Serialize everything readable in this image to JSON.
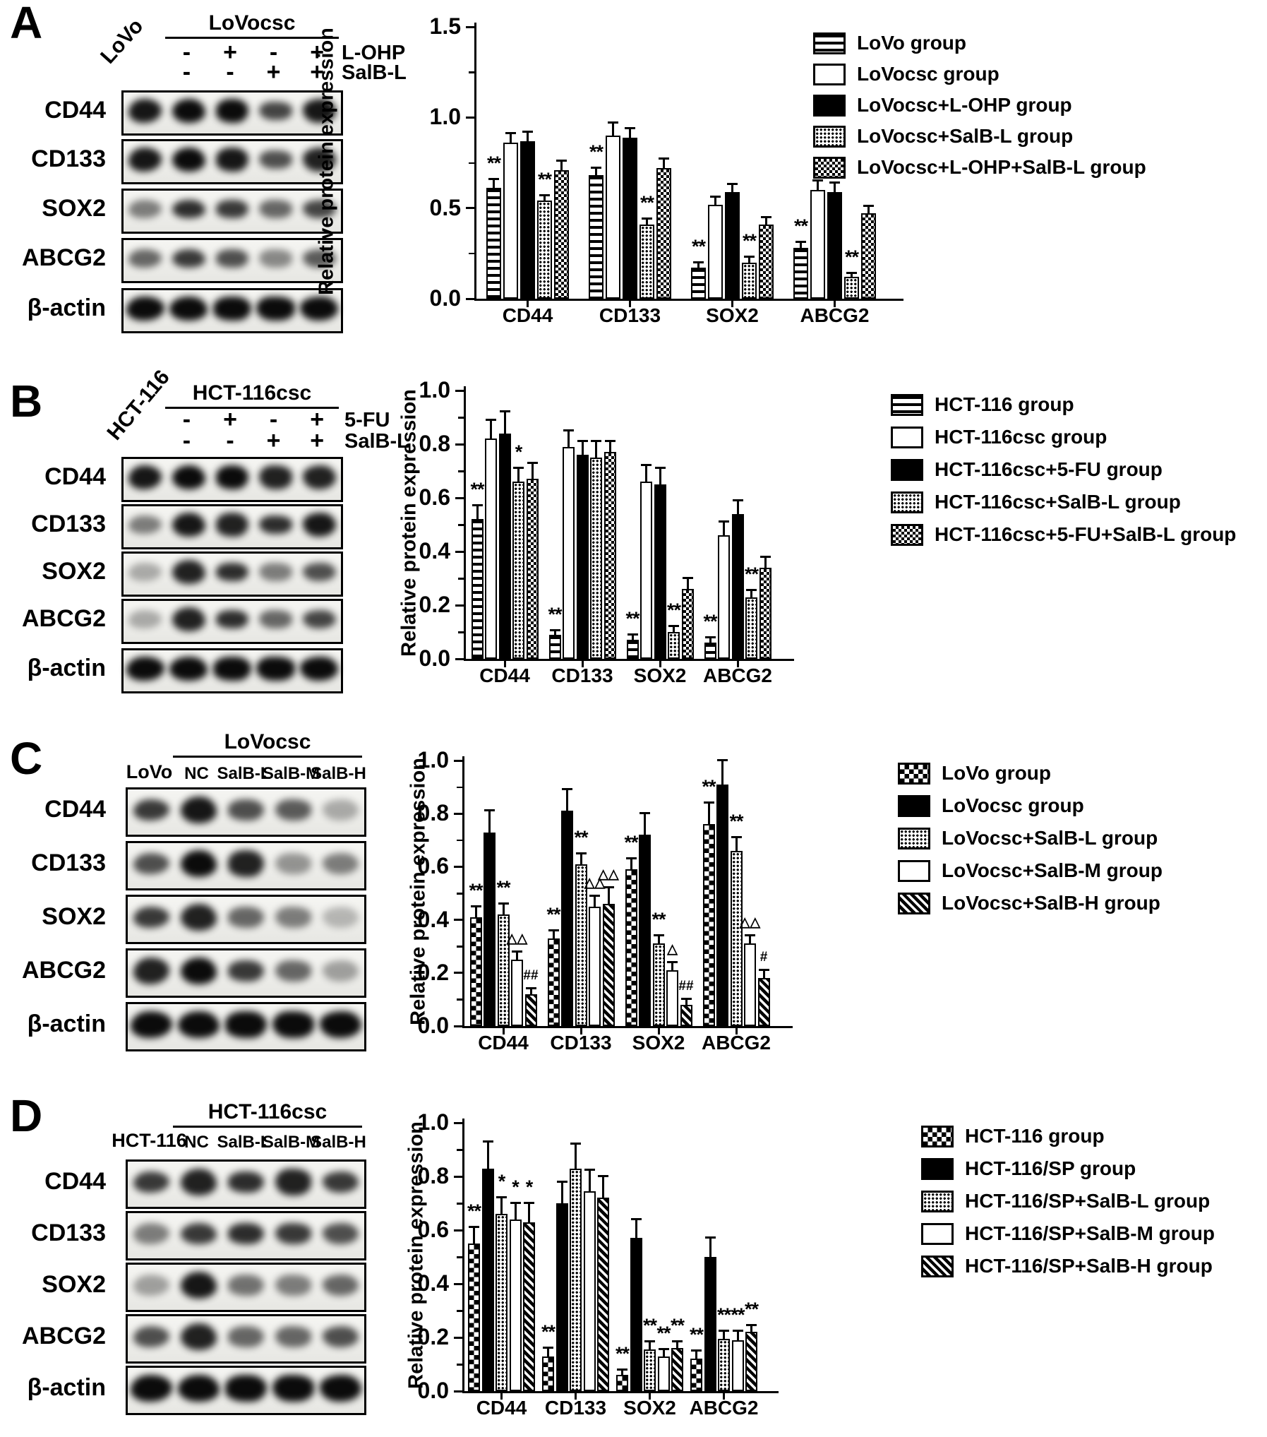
{
  "figure": {
    "panel_letters": [
      "A",
      "B",
      "C",
      "D"
    ]
  },
  "blots": [
    {
      "panel": "A",
      "first_lane_label": "LoVo",
      "header": "LoVocsc",
      "treatment_rows": [
        {
          "label": "L-OHP",
          "signs": [
            "-",
            "+",
            "-",
            "+"
          ]
        },
        {
          "label": "SalB-L",
          "signs": [
            "-",
            "-",
            "+",
            "+"
          ]
        }
      ],
      "band_rows": [
        {
          "label": "CD44",
          "intensities": [
            0.95,
            1,
            1,
            0.75,
            0.95
          ]
        },
        {
          "label": "CD133",
          "intensities": [
            0.95,
            1,
            0.95,
            0.7,
            0.9
          ]
        },
        {
          "label": "SOX2",
          "intensities": [
            0.5,
            0.85,
            0.8,
            0.6,
            0.75
          ]
        },
        {
          "label": "ABCG2",
          "intensities": [
            0.6,
            0.8,
            0.7,
            0.45,
            0.65
          ]
        },
        {
          "label": "β-actin",
          "intensities": [
            1,
            1,
            1,
            1,
            1
          ]
        }
      ]
    },
    {
      "panel": "B",
      "first_lane_label": "HCT-116",
      "header": "HCT-116csc",
      "treatment_rows": [
        {
          "label": "5-FU",
          "signs": [
            "-",
            "+",
            "-",
            "+"
          ]
        },
        {
          "label": "SalB-L",
          "signs": [
            "-",
            "-",
            "+",
            "+"
          ]
        }
      ],
      "band_rows": [
        {
          "label": "CD44",
          "intensities": [
            0.95,
            1,
            1,
            0.9,
            0.9
          ]
        },
        {
          "label": "CD133",
          "intensities": [
            0.5,
            0.95,
            0.9,
            0.85,
            0.95
          ]
        },
        {
          "label": "SOX2",
          "intensities": [
            0.3,
            0.9,
            0.85,
            0.5,
            0.7
          ]
        },
        {
          "label": "ABCG2",
          "intensities": [
            0.3,
            0.9,
            0.85,
            0.6,
            0.75
          ]
        },
        {
          "label": "β-actin",
          "intensities": [
            1,
            1,
            1,
            1,
            1
          ]
        }
      ]
    },
    {
      "panel": "C",
      "first_lane_label": "LoVo",
      "header": "LoVocsc",
      "lane_labels": [
        "NC",
        "SalB-L",
        "SalB-M",
        "SalB-H"
      ],
      "band_rows": [
        {
          "label": "CD44",
          "intensities": [
            0.8,
            0.95,
            0.7,
            0.65,
            0.3
          ]
        },
        {
          "label": "CD133",
          "intensities": [
            0.7,
            1,
            0.9,
            0.4,
            0.5
          ]
        },
        {
          "label": "SOX2",
          "intensities": [
            0.8,
            0.9,
            0.6,
            0.5,
            0.25
          ]
        },
        {
          "label": "ABCG2",
          "intensities": [
            0.9,
            1,
            0.8,
            0.6,
            0.35
          ]
        },
        {
          "label": "β-actin",
          "intensities": [
            1,
            1,
            1,
            1,
            1
          ]
        }
      ]
    },
    {
      "panel": "D",
      "first_lane_label": "HCT-116",
      "header": "HCT-116csc",
      "lane_labels": [
        "NC",
        "SalB-L",
        "SalB-M",
        "SalB-H"
      ],
      "band_rows": [
        {
          "label": "CD44",
          "intensities": [
            0.8,
            0.9,
            0.85,
            0.9,
            0.8
          ]
        },
        {
          "label": "CD133",
          "intensities": [
            0.5,
            0.8,
            0.85,
            0.8,
            0.7
          ]
        },
        {
          "label": "SOX2",
          "intensities": [
            0.35,
            0.95,
            0.55,
            0.5,
            0.6
          ]
        },
        {
          "label": "ABCG2",
          "intensities": [
            0.7,
            0.9,
            0.6,
            0.6,
            0.7
          ]
        },
        {
          "label": "β-actin",
          "intensities": [
            1,
            1,
            1,
            1,
            1
          ]
        }
      ]
    }
  ],
  "chart_data": [
    {
      "panel": "A",
      "type": "bar",
      "ylabel": "Relative protein expression",
      "ylim": [
        0,
        1.5
      ],
      "yticks": [
        "0.0",
        "0.5",
        "1.0",
        "1.5"
      ],
      "grid": false,
      "legend_position": "right",
      "categories": [
        "CD44",
        "CD133",
        "SOX2",
        "ABCG2"
      ],
      "series": [
        {
          "name": "LoVo group",
          "pattern": "hlines",
          "values": [
            0.61,
            0.68,
            0.17,
            0.28
          ],
          "errors": [
            0.05,
            0.04,
            0.03,
            0.03
          ],
          "sig": [
            "**",
            "**",
            "**",
            "**"
          ]
        },
        {
          "name": "LoVocsc group",
          "pattern": "open",
          "values": [
            0.86,
            0.9,
            0.52,
            0.6
          ],
          "errors": [
            0.05,
            0.07,
            0.04,
            0.05
          ],
          "sig": [
            "",
            "",
            "",
            ""
          ]
        },
        {
          "name": "LoVocsc+L-OHP group",
          "pattern": "solid",
          "values": [
            0.87,
            0.89,
            0.59,
            0.59
          ],
          "errors": [
            0.05,
            0.05,
            0.04,
            0.05
          ],
          "sig": [
            "",
            "",
            "",
            ""
          ]
        },
        {
          "name": "LoVocsc+SalB-L group",
          "pattern": "stipple",
          "values": [
            0.54,
            0.41,
            0.2,
            0.12
          ],
          "errors": [
            0.03,
            0.03,
            0.03,
            0.02
          ],
          "sig": [
            "**",
            "**",
            "**",
            "**"
          ]
        },
        {
          "name": "LoVocsc+L-OHP+SalB-L group",
          "pattern": "checker-fine",
          "values": [
            0.71,
            0.72,
            0.41,
            0.47
          ],
          "errors": [
            0.05,
            0.05,
            0.04,
            0.04
          ],
          "sig": [
            "",
            "",
            "",
            ""
          ]
        }
      ]
    },
    {
      "panel": "B",
      "type": "bar",
      "ylabel": "Relative protein expression",
      "ylim": [
        0,
        1.0
      ],
      "yticks": [
        "0.0",
        "0.2",
        "0.4",
        "0.6",
        "0.8",
        "1.0"
      ],
      "grid": false,
      "legend_position": "right",
      "categories": [
        "CD44",
        "CD133",
        "SOX2",
        "ABCG2"
      ],
      "series": [
        {
          "name": "HCT-116 group",
          "pattern": "hlines",
          "values": [
            0.52,
            0.09,
            0.07,
            0.06
          ],
          "errors": [
            0.05,
            0.015,
            0.02,
            0.02
          ],
          "sig": [
            "**",
            "**",
            "**",
            "**"
          ]
        },
        {
          "name": "HCT-116csc group",
          "pattern": "open",
          "values": [
            0.82,
            0.79,
            0.66,
            0.46
          ],
          "errors": [
            0.07,
            0.06,
            0.06,
            0.05
          ],
          "sig": [
            "",
            "",
            "",
            ""
          ]
        },
        {
          "name": "HCT-116csc+5-FU group",
          "pattern": "solid",
          "values": [
            0.84,
            0.76,
            0.65,
            0.54
          ],
          "errors": [
            0.08,
            0.05,
            0.06,
            0.05
          ],
          "sig": [
            "",
            "",
            "",
            ""
          ]
        },
        {
          "name": "HCT-116csc+SalB-L group",
          "pattern": "stipple",
          "values": [
            0.66,
            0.75,
            0.1,
            0.23
          ],
          "errors": [
            0.05,
            0.06,
            0.02,
            0.025
          ],
          "sig": [
            "*",
            "",
            "**",
            "**"
          ]
        },
        {
          "name": "HCT-116csc+5-FU+SalB-L group",
          "pattern": "checker-fine",
          "values": [
            0.67,
            0.77,
            0.26,
            0.34
          ],
          "errors": [
            0.06,
            0.04,
            0.04,
            0.04
          ],
          "sig": [
            "",
            "",
            "",
            ""
          ]
        }
      ]
    },
    {
      "panel": "C",
      "type": "bar",
      "ylabel": "Relative protein expression",
      "ylim": [
        0,
        1.0
      ],
      "yticks": [
        "0.0",
        "0.2",
        "0.4",
        "0.6",
        "0.8",
        "1.0"
      ],
      "grid": false,
      "legend_position": "right",
      "categories": [
        "CD44",
        "CD133",
        "SOX2",
        "ABCG2"
      ],
      "series": [
        {
          "name": "LoVo group",
          "pattern": "checker",
          "values": [
            0.41,
            0.33,
            0.59,
            0.76
          ],
          "errors": [
            0.04,
            0.03,
            0.04,
            0.08
          ],
          "sig": [
            "**",
            "**",
            "**",
            "**"
          ]
        },
        {
          "name": "LoVocsc group",
          "pattern": "solid",
          "values": [
            0.73,
            0.81,
            0.72,
            0.91
          ],
          "errors": [
            0.08,
            0.08,
            0.08,
            0.09
          ],
          "sig": [
            "",
            "",
            "",
            ""
          ]
        },
        {
          "name": "LoVocsc+SalB-L group",
          "pattern": "stipple",
          "values": [
            0.42,
            0.61,
            0.31,
            0.66
          ],
          "errors": [
            0.04,
            0.04,
            0.03,
            0.05
          ],
          "sig": [
            "**",
            "**",
            "**",
            "**"
          ]
        },
        {
          "name": "LoVocsc+SalB-M group",
          "pattern": "open",
          "values": [
            0.25,
            0.45,
            0.21,
            0.31
          ],
          "errors": [
            0.03,
            0.04,
            0.03,
            0.03
          ],
          "sig": [
            "△△",
            "△△",
            "△",
            "△△"
          ]
        },
        {
          "name": "LoVocsc+SalB-H group",
          "pattern": "diag",
          "values": [
            0.12,
            0.46,
            0.08,
            0.18
          ],
          "errors": [
            0.02,
            0.06,
            0.02,
            0.03
          ],
          "sig": [
            "##",
            "△△",
            "##",
            "#"
          ]
        }
      ]
    },
    {
      "panel": "D",
      "type": "bar",
      "ylabel": "Relative protein expression",
      "ylim": [
        0,
        1.0
      ],
      "yticks": [
        "0.0",
        "0.2",
        "0.4",
        "0.6",
        "0.8",
        "1.0"
      ],
      "grid": false,
      "legend_position": "right",
      "categories": [
        "CD44",
        "CD133",
        "SOX2",
        "ABCG2"
      ],
      "series": [
        {
          "name": "HCT-116 group",
          "pattern": "checker",
          "values": [
            0.55,
            0.13,
            0.06,
            0.12
          ],
          "errors": [
            0.06,
            0.03,
            0.02,
            0.03
          ],
          "sig": [
            "**",
            "**",
            "**",
            "**"
          ]
        },
        {
          "name": "HCT-116/SP group",
          "pattern": "solid",
          "values": [
            0.83,
            0.7,
            0.57,
            0.5
          ],
          "errors": [
            0.1,
            0.08,
            0.07,
            0.07
          ],
          "sig": [
            "",
            "",
            "",
            ""
          ]
        },
        {
          "name": "HCT-116/SP+SalB-L group",
          "pattern": "stipple",
          "values": [
            0.66,
            0.83,
            0.155,
            0.195
          ],
          "errors": [
            0.06,
            0.09,
            0.03,
            0.03
          ],
          "sig": [
            "*",
            "",
            "**",
            "**"
          ]
        },
        {
          "name": "HCT-116/SP+SalB-M group",
          "pattern": "open",
          "values": [
            0.64,
            0.745,
            0.13,
            0.19
          ],
          "errors": [
            0.06,
            0.08,
            0.025,
            0.035
          ],
          "sig": [
            "*",
            "",
            "**",
            "**"
          ]
        },
        {
          "name": "HCT-116/SP+SalB-H group",
          "pattern": "diag",
          "values": [
            0.63,
            0.72,
            0.16,
            0.22
          ],
          "errors": [
            0.07,
            0.08,
            0.025,
            0.025
          ],
          "sig": [
            "*",
            "",
            "**",
            "**"
          ]
        }
      ]
    }
  ]
}
